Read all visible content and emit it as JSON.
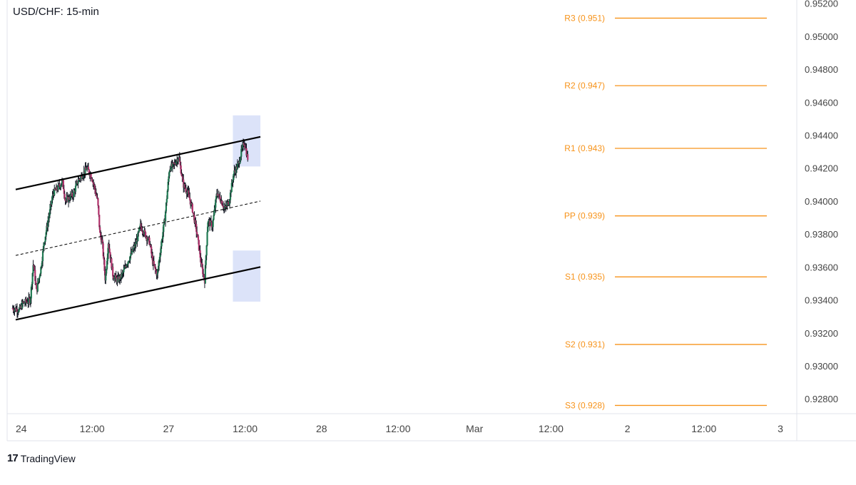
{
  "chart_data": {
    "type": "candlestick",
    "title": "USD/CHF: 15-min",
    "x_ticks": [
      "24",
      "12:00",
      "27",
      "12:00",
      "28",
      "12:00",
      "Mar",
      "12:00",
      "2",
      "12:00",
      "3"
    ],
    "y_ticks": [
      "0.95200",
      "0.95000",
      "0.94800",
      "0.94600",
      "0.94400",
      "0.94200",
      "0.94000",
      "0.93800",
      "0.93600",
      "0.93400",
      "0.93200",
      "0.93000",
      "0.92800"
    ],
    "ylim": [
      0.9271,
      0.9522
    ],
    "pivot_levels": [
      {
        "label": "R3 (0.951)",
        "value": 0.9511
      },
      {
        "label": "R2 (0.947)",
        "value": 0.947
      },
      {
        "label": "R1 (0.943)",
        "value": 0.9432
      },
      {
        "label": "PP (0.939)",
        "value": 0.9391
      },
      {
        "label": "S1 (0.935)",
        "value": 0.9354
      },
      {
        "label": "S2 (0.931)",
        "value": 0.9313
      },
      {
        "label": "S3 (0.928)",
        "value": 0.9276
      }
    ],
    "channel": {
      "upper": [
        [
          0.0,
          0.9407
        ],
        [
          1.6,
          0.9439
        ]
      ],
      "lower": [
        [
          0.0,
          0.9328
        ],
        [
          1.6,
          0.936
        ]
      ],
      "mid": [
        [
          0.0,
          0.9367
        ],
        [
          1.6,
          0.94
        ]
      ]
    },
    "zones": [
      {
        "x": [
          1.42,
          1.6
        ],
        "y": [
          0.9421,
          0.9452
        ]
      },
      {
        "x": [
          1.42,
          1.6
        ],
        "y": [
          0.9339,
          0.937
        ]
      }
    ],
    "price_path": [
      [
        -0.02,
        0.9335
      ],
      [
        0.03,
        0.9334
      ],
      [
        0.05,
        0.9338
      ],
      [
        0.1,
        0.934
      ],
      [
        0.12,
        0.9363
      ],
      [
        0.14,
        0.9345
      ],
      [
        0.17,
        0.936
      ],
      [
        0.19,
        0.9375
      ],
      [
        0.22,
        0.939
      ],
      [
        0.25,
        0.9405
      ],
      [
        0.28,
        0.9408
      ],
      [
        0.31,
        0.9412
      ],
      [
        0.33,
        0.94
      ],
      [
        0.38,
        0.9404
      ],
      [
        0.41,
        0.9412
      ],
      [
        0.44,
        0.9416
      ],
      [
        0.47,
        0.942
      ],
      [
        0.5,
        0.9415
      ],
      [
        0.52,
        0.9408
      ],
      [
        0.54,
        0.94
      ],
      [
        0.555,
        0.938
      ],
      [
        0.57,
        0.9375
      ],
      [
        0.59,
        0.9352
      ],
      [
        0.61,
        0.9375
      ],
      [
        0.64,
        0.9355
      ],
      [
        0.67,
        0.9352
      ],
      [
        0.7,
        0.9355
      ],
      [
        0.73,
        0.9362
      ],
      [
        0.76,
        0.9368
      ],
      [
        0.79,
        0.9374
      ],
      [
        0.82,
        0.9385
      ],
      [
        0.85,
        0.938
      ],
      [
        0.88,
        0.9375
      ],
      [
        0.9,
        0.9363
      ],
      [
        0.93,
        0.9355
      ],
      [
        0.95,
        0.937
      ],
      [
        0.98,
        0.939
      ],
      [
        1.01,
        0.942
      ],
      [
        1.04,
        0.9422
      ],
      [
        1.07,
        0.9427
      ],
      [
        1.1,
        0.941
      ],
      [
        1.13,
        0.9405
      ],
      [
        1.16,
        0.9395
      ],
      [
        1.19,
        0.938
      ],
      [
        1.22,
        0.936
      ],
      [
        1.24,
        0.9352
      ],
      [
        1.26,
        0.9388
      ],
      [
        1.29,
        0.9385
      ],
      [
        1.32,
        0.9405
      ],
      [
        1.35,
        0.94
      ],
      [
        1.37,
        0.9395
      ],
      [
        1.4,
        0.94
      ],
      [
        1.43,
        0.9417
      ],
      [
        1.46,
        0.9422
      ],
      [
        1.48,
        0.943
      ],
      [
        1.5,
        0.9436
      ],
      [
        1.52,
        0.9426
      ]
    ]
  },
  "branding": {
    "logo_text": "TradingView",
    "logo_icon": "tradingview-logo-icon"
  },
  "colors": {
    "up": "#26a69a",
    "up_body": "#1f7a52",
    "down": "#b0306a",
    "wick": "#131722",
    "pivot": "#f7931a",
    "zone": "#d6def8",
    "channel": "#000000",
    "axis_text": "#444444",
    "grid": "#e0e3eb"
  }
}
